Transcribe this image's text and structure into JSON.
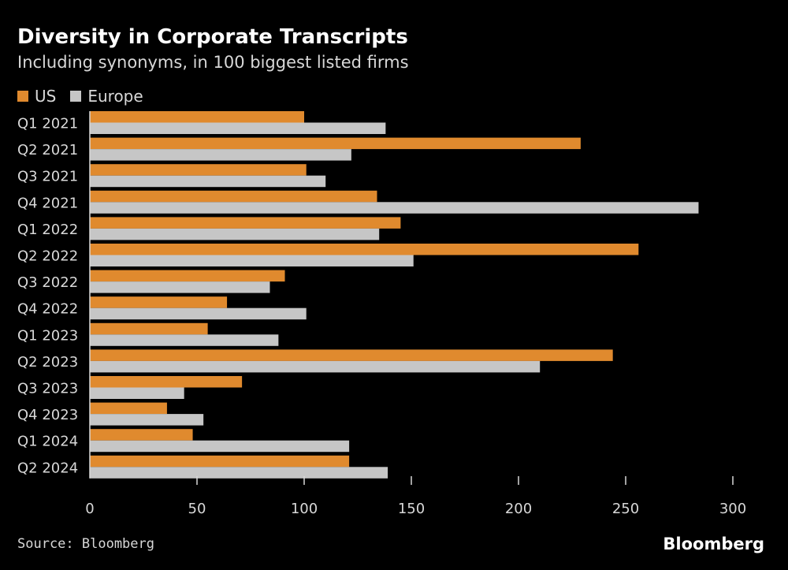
{
  "header": {
    "title": "Diversity in Corporate Transcripts",
    "subtitle": "Including synonyms, in 100 biggest listed firms"
  },
  "footer": {
    "source": "Source: Bloomberg",
    "brand": "Bloomberg"
  },
  "colors": {
    "us": "#e08a2e",
    "europe": "#c6c6c6",
    "background": "#000000",
    "text": "#ffffff",
    "muted_text": "#d8d8d8"
  },
  "chart_data": {
    "type": "bar",
    "orientation": "horizontal",
    "title": "Diversity in Corporate Transcripts",
    "subtitle": "Including synonyms, in 100 biggest listed firms",
    "categories": [
      "Q1 2021",
      "Q2 2021",
      "Q3 2021",
      "Q4 2021",
      "Q1 2022",
      "Q2 2022",
      "Q3 2022",
      "Q4 2022",
      "Q1 2023",
      "Q2 2023",
      "Q3 2023",
      "Q4 2023",
      "Q1 2024",
      "Q2 2024"
    ],
    "series": [
      {
        "name": "US",
        "values": [
          100,
          229,
          101,
          134,
          145,
          256,
          91,
          64,
          55,
          244,
          71,
          36,
          48,
          121
        ]
      },
      {
        "name": "Europe",
        "values": [
          138,
          122,
          110,
          284,
          135,
          151,
          84,
          101,
          88,
          210,
          44,
          53,
          121,
          139
        ]
      }
    ],
    "xlim": [
      0,
      300
    ],
    "xticks": [
      "0",
      "50",
      "100",
      "150",
      "200",
      "250",
      "300"
    ],
    "xlabel": "",
    "ylabel": "",
    "grid": false,
    "legend_position": "top-left"
  }
}
